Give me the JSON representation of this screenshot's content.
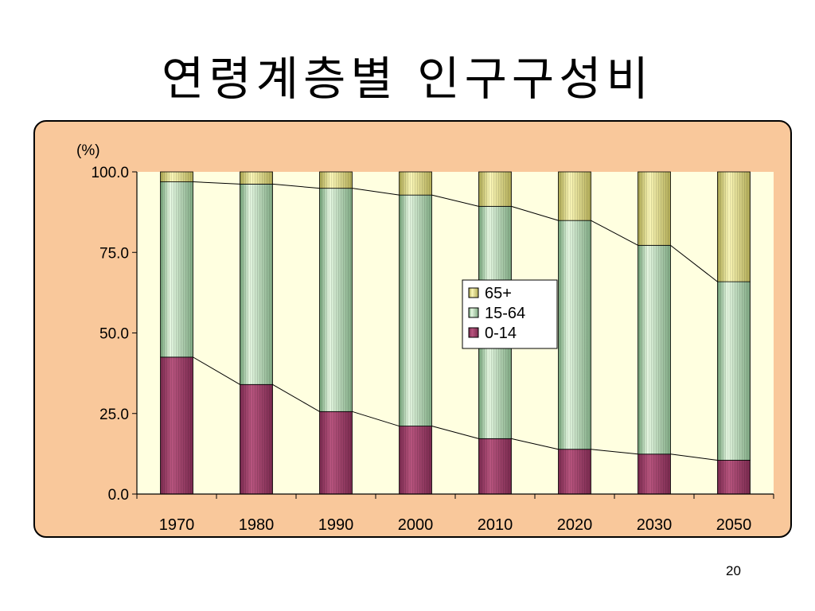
{
  "slide": {
    "title": "연령계층별 인구구성비",
    "page_number": "20"
  },
  "chart_data": {
    "type": "bar",
    "stacked": true,
    "y_unit_label": "(%)",
    "categories": [
      "1970",
      "1980",
      "1990",
      "2000",
      "2010",
      "2020",
      "2030",
      "2050"
    ],
    "series": [
      {
        "name": "0-14",
        "values": [
          42.5,
          34.0,
          25.6,
          21.1,
          17.2,
          13.9,
          12.4,
          10.5
        ]
      },
      {
        "name": "15-64",
        "values": [
          54.4,
          62.2,
          69.3,
          71.7,
          72.1,
          71.0,
          64.8,
          55.4
        ]
      },
      {
        "name": "65+",
        "values": [
          3.1,
          3.8,
          5.1,
          7.2,
          10.7,
          15.1,
          22.8,
          34.1
        ]
      }
    ],
    "ylim": [
      0,
      100
    ],
    "y_ticks": [
      "0.0",
      "25.0",
      "50.0",
      "75.0",
      "100.0"
    ],
    "legend_order": [
      "65+",
      "15-64",
      "0-14"
    ],
    "legend_position": "center-right",
    "grid": false,
    "connector_lines": true,
    "colors": {
      "0-14": "#a0456e",
      "15-64": "#c8ecc8",
      "65+": "#f2ed9a",
      "plot_background": "#ffffe0",
      "frame_background": "#f9c89b"
    }
  }
}
